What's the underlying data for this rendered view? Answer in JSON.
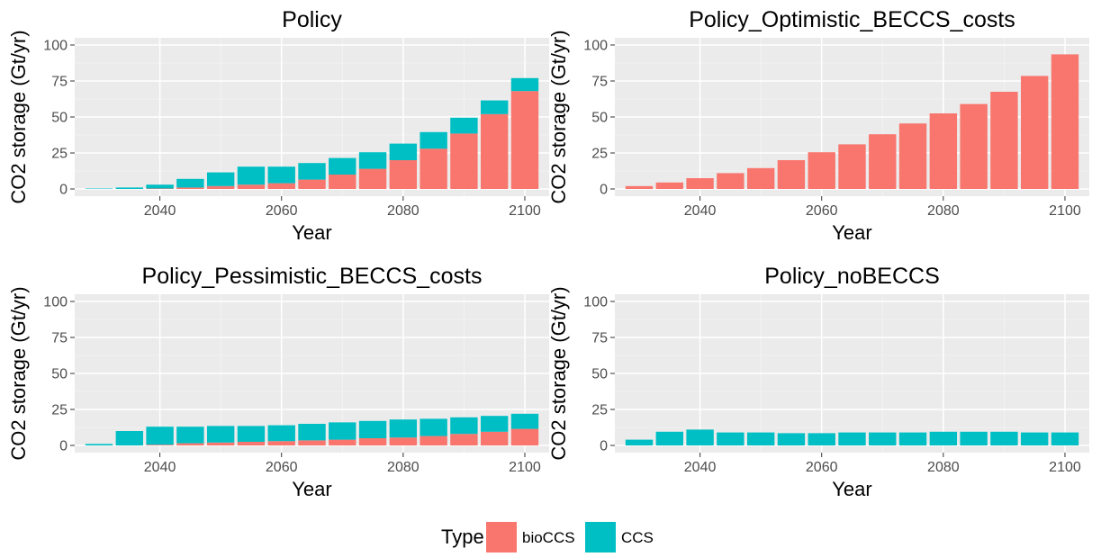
{
  "colors": {
    "panel_bg": "#EBEBEB",
    "grid_major": "#FFFFFF",
    "grid_minor": "#F4F4F4",
    "bioCCS": "#F8766D",
    "CCS": "#00BFC4",
    "text": "#000000",
    "tick_text": "#4D4D4D"
  },
  "legend": {
    "title": "Type",
    "entries": [
      {
        "label": "bioCCS",
        "color": "#F8766D"
      },
      {
        "label": "CCS",
        "color": "#00BFC4"
      }
    ],
    "position": "bottom"
  },
  "chart_data": [
    {
      "type": "bar",
      "stacked": true,
      "title": "Policy",
      "xlabel": "Year",
      "ylabel": "CO2 storage (Gt/yr)",
      "xlim": [
        2026,
        2104
      ],
      "ylim": [
        -5,
        105
      ],
      "xticks": [
        2040,
        2060,
        2080,
        2100
      ],
      "yticks": [
        0,
        25,
        50,
        75,
        100
      ],
      "x": [
        2030,
        2035,
        2040,
        2045,
        2050,
        2055,
        2060,
        2065,
        2070,
        2075,
        2080,
        2085,
        2090,
        2095,
        2100
      ],
      "series": [
        {
          "name": "bioCCS",
          "values": [
            0,
            0,
            0.3,
            1,
            2,
            3,
            4,
            6.5,
            10,
            14,
            20,
            28,
            38.5,
            52,
            68
          ]
        },
        {
          "name": "CCS",
          "values": [
            0.3,
            1,
            2.7,
            6,
            9.5,
            12.5,
            11.5,
            11.5,
            11.5,
            11.5,
            11.5,
            11.5,
            11,
            9.5,
            9
          ]
        }
      ]
    },
    {
      "type": "bar",
      "stacked": true,
      "title": "Policy_Optimistic_BECCS_costs",
      "xlabel": "Year",
      "ylabel": "CO2 storage (Gt/yr)",
      "xlim": [
        2026,
        2104
      ],
      "ylim": [
        -5,
        105
      ],
      "xticks": [
        2040,
        2060,
        2080,
        2100
      ],
      "yticks": [
        0,
        25,
        50,
        75,
        100
      ],
      "x": [
        2030,
        2035,
        2040,
        2045,
        2050,
        2055,
        2060,
        2065,
        2070,
        2075,
        2080,
        2085,
        2090,
        2095,
        2100
      ],
      "series": [
        {
          "name": "bioCCS",
          "values": [
            2,
            4.5,
            7.5,
            11,
            14.5,
            20,
            25.5,
            31,
            38,
            45.5,
            52.5,
            59,
            67.5,
            78.5,
            93.5
          ]
        },
        {
          "name": "CCS",
          "values": [
            0,
            0,
            0,
            0,
            0,
            0,
            0,
            0,
            0,
            0,
            0,
            0,
            0,
            0,
            0
          ]
        }
      ]
    },
    {
      "type": "bar",
      "stacked": true,
      "title": "Policy_Pessimistic_BECCS_costs",
      "xlabel": "Year",
      "ylabel": "CO2 storage (Gt/yr)",
      "xlim": [
        2026,
        2104
      ],
      "ylim": [
        -5,
        105
      ],
      "xticks": [
        2040,
        2060,
        2080,
        2100
      ],
      "yticks": [
        0,
        25,
        50,
        75,
        100
      ],
      "x": [
        2030,
        2035,
        2040,
        2045,
        2050,
        2055,
        2060,
        2065,
        2070,
        2075,
        2080,
        2085,
        2090,
        2095,
        2100
      ],
      "series": [
        {
          "name": "bioCCS",
          "values": [
            0,
            0,
            0.5,
            1.5,
            2,
            2.5,
            3,
            3.5,
            4,
            5,
            5.5,
            6.5,
            8,
            9.5,
            11.5
          ]
        },
        {
          "name": "CCS",
          "values": [
            1,
            10,
            12.5,
            11.5,
            11.5,
            11,
            11,
            11.5,
            12,
            12,
            12.5,
            12,
            11.5,
            11,
            10.5
          ]
        }
      ]
    },
    {
      "type": "bar",
      "stacked": true,
      "title": "Policy_noBECCS",
      "xlabel": "Year",
      "ylabel": "CO2 storage (Gt/yr)",
      "xlim": [
        2026,
        2104
      ],
      "ylim": [
        -5,
        105
      ],
      "xticks": [
        2040,
        2060,
        2080,
        2100
      ],
      "yticks": [
        0,
        25,
        50,
        75,
        100
      ],
      "x": [
        2030,
        2035,
        2040,
        2045,
        2050,
        2055,
        2060,
        2065,
        2070,
        2075,
        2080,
        2085,
        2090,
        2095,
        2100
      ],
      "series": [
        {
          "name": "bioCCS",
          "values": [
            0,
            0,
            0,
            0,
            0,
            0,
            0,
            0,
            0,
            0,
            0,
            0,
            0,
            0,
            0
          ]
        },
        {
          "name": "CCS",
          "values": [
            4,
            9.5,
            11,
            9,
            9,
            8.5,
            8.5,
            9,
            9,
            9,
            9.5,
            9.5,
            9.5,
            9,
            9
          ]
        }
      ]
    }
  ]
}
